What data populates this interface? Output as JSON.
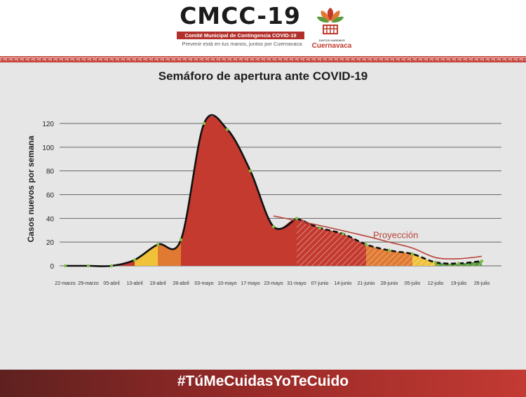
{
  "header": {
    "title": "CMCC-19",
    "subtitle": "Comité Municipal de Contingencia COVID-19",
    "slogan": "Prevenir está en tus manos, juntos por Cuernavaca",
    "city_tag": "JUNTOS HAREMOS",
    "city": "Cuernavaca"
  },
  "footer": {
    "hashtag": "#TúMeCuidasYoTeCuido"
  },
  "colors": {
    "red": "#c43a2e",
    "orange": "#e07a32",
    "yellow": "#f0c23a",
    "green": "#5a9a3c",
    "projection": "#b8433a",
    "footer": "#9a2a28"
  },
  "chart_data": {
    "type": "area",
    "title": "Semáforo de apertura ante COVID-19",
    "ylabel": "Casos nuevos por semana",
    "xlabel": "",
    "ylim": [
      0,
      120
    ],
    "yticks": [
      0,
      20,
      40,
      60,
      80,
      100,
      120
    ],
    "grid": true,
    "categories": [
      "22-marzo",
      "29-marzo",
      "05-abril",
      "13-abril",
      "19-abril",
      "28-abril",
      "03-mayo",
      "10-mayo",
      "17-mayo",
      "23-mayo",
      "31-mayo",
      "07-junio",
      "14-junio",
      "21-junio",
      "28-junio",
      "05-julio",
      "12-julio",
      "19-julio",
      "26-julio"
    ],
    "series": [
      {
        "values": [
          0,
          0,
          0,
          5,
          18,
          22,
          120,
          115,
          80,
          33,
          40,
          32,
          27,
          18,
          13,
          10,
          3,
          2,
          4
        ]
      }
    ],
    "bands": [
      {
        "color": "red",
        "from": "22-marzo",
        "to": "13-abril"
      },
      {
        "color": "yellow",
        "from": "13-abril",
        "to": "19-abril"
      },
      {
        "color": "orange",
        "from": "19-abril",
        "to": "28-abril"
      },
      {
        "color": "red",
        "from": "28-abril",
        "to": "31-mayo"
      },
      {
        "color": "red",
        "from": "31-mayo",
        "to": "21-junio",
        "projected": true
      },
      {
        "color": "orange",
        "from": "21-junio",
        "to": "05-julio",
        "projected": true
      },
      {
        "color": "yellow",
        "from": "05-julio",
        "to": "12-julio",
        "projected": true
      },
      {
        "color": "green",
        "from": "12-julio",
        "to": "26-julio",
        "projected": true
      }
    ],
    "projection": {
      "label": "Proyección",
      "points": [
        [
          10,
          42
        ],
        [
          12,
          34
        ],
        [
          14,
          25
        ],
        [
          15,
          20
        ],
        [
          16,
          15
        ],
        [
          17,
          7
        ],
        [
          18,
          6
        ],
        [
          19,
          8
        ]
      ]
    }
  }
}
